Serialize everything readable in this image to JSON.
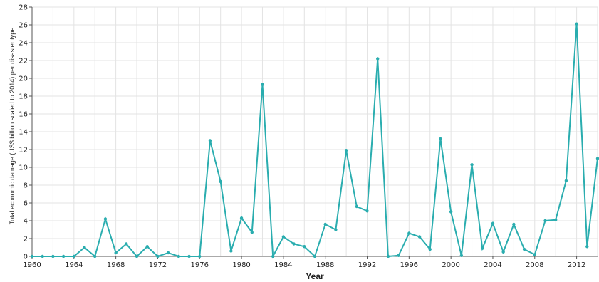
{
  "chart_data": {
    "type": "line",
    "xlabel": "Year",
    "ylabel": "Total economic damage (US$ billion scaled to 2014) per disaster type",
    "xlim": [
      1960,
      2014
    ],
    "ylim": [
      0,
      28
    ],
    "x_ticks": [
      1960,
      1964,
      1968,
      1972,
      1976,
      1980,
      1984,
      1988,
      1992,
      1996,
      2000,
      2004,
      2008,
      2012
    ],
    "y_ticks": [
      0,
      2,
      4,
      6,
      8,
      10,
      12,
      14,
      16,
      18,
      20,
      22,
      24,
      26,
      28
    ],
    "grid": true,
    "colors": {
      "series": "#2aadaf",
      "grid": "#e3e3e3"
    },
    "series": [
      {
        "x": [
          1960,
          1961,
          1962,
          1963,
          1964,
          1965,
          1966,
          1967,
          1968,
          1969,
          1970,
          1971,
          1972,
          1973,
          1974,
          1975,
          1976,
          1977,
          1978,
          1979,
          1980,
          1981,
          1982,
          1983,
          1984,
          1985,
          1986,
          1987,
          1988,
          1989,
          1990,
          1991,
          1992,
          1993,
          1994,
          1995,
          1996,
          1997,
          1998,
          1999,
          2000,
          2001,
          2002,
          2003,
          2004,
          2005,
          2006,
          2007,
          2008,
          2009,
          2010,
          2011,
          2012,
          2013,
          2014
        ],
        "y": [
          0,
          0,
          0,
          0,
          0,
          1.0,
          0,
          4.2,
          0.4,
          1.4,
          0,
          1.1,
          0,
          0.4,
          0,
          0,
          0,
          13.0,
          8.4,
          0.6,
          4.3,
          2.7,
          19.3,
          0,
          2.2,
          1.4,
          1.1,
          0,
          3.6,
          3.0,
          11.9,
          5.6,
          5.1,
          22.2,
          0,
          0.1,
          2.6,
          2.2,
          0.8,
          13.2,
          5.0,
          0.1,
          10.3,
          0.9,
          3.7,
          0.5,
          3.6,
          0.8,
          0.2,
          4.0,
          4.1,
          8.5,
          26.1,
          1.1,
          11.0
        ]
      }
    ]
  }
}
